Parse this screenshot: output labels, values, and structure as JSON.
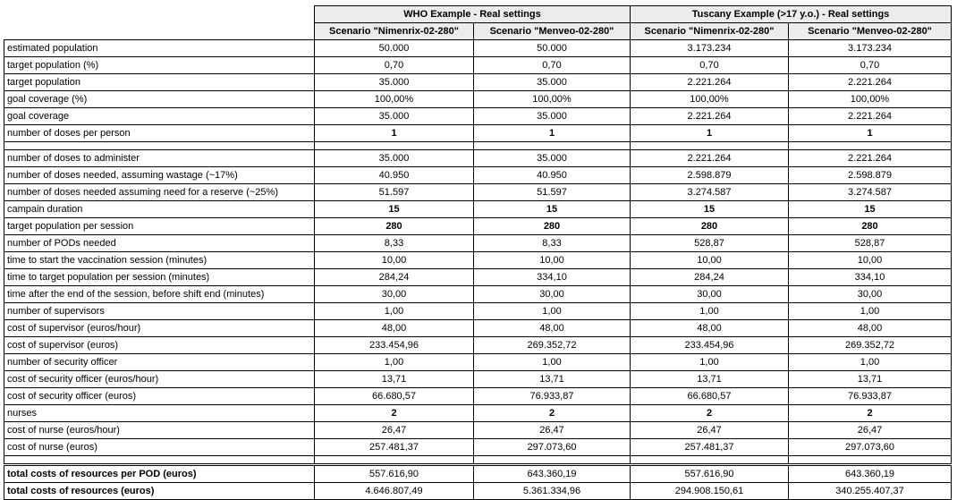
{
  "table": {
    "groups": [
      "WHO Example - Real settings",
      "Tuscany Example (>17 y.o.) - Real settings"
    ],
    "scenarios": [
      "Scenario \"Nimenrix-02-280\"",
      "Scenario \"Menveo-02-280\"",
      "Scenario \"Nimenrix-02-280\"",
      "Scenario \"Menveo-02-280\""
    ],
    "rows": [
      {
        "label": "estimated population",
        "values": [
          "50.000",
          "50.000",
          "3.173.234",
          "3.173.234"
        ]
      },
      {
        "label": "target population (%)",
        "values": [
          "0,70",
          "0,70",
          "0,70",
          "0,70"
        ]
      },
      {
        "label": "target population",
        "values": [
          "35.000",
          "35.000",
          "2.221.264",
          "2.221.264"
        ]
      },
      {
        "label": "goal coverage (%)",
        "values": [
          "100,00%",
          "100,00%",
          "100,00%",
          "100,00%"
        ]
      },
      {
        "label": "goal coverage",
        "values": [
          "35.000",
          "35.000",
          "2.221.264",
          "2.221.264"
        ]
      },
      {
        "label": "number of doses per person",
        "values": [
          "1",
          "1",
          "1",
          "1"
        ]
      },
      {
        "label": "number of doses to administer",
        "values": [
          "35.000",
          "35.000",
          "2.221.264",
          "2.221.264"
        ]
      },
      {
        "label": "number of doses needed, assuming wastage (~17%)",
        "values": [
          "40.950",
          "40.950",
          "2.598.879",
          "2.598.879"
        ]
      },
      {
        "label": "number of doses needed assuming need for a reserve (~25%)",
        "values": [
          "51.597",
          "51.597",
          "3.274.587",
          "3.274.587"
        ]
      },
      {
        "label": "campain duration",
        "values": [
          "15",
          "15",
          "15",
          "15"
        ]
      },
      {
        "label": "target population per session",
        "values": [
          "280",
          "280",
          "280",
          "280"
        ]
      },
      {
        "label": "number of PODs needed",
        "values": [
          "8,33",
          "8,33",
          "528,87",
          "528,87"
        ]
      },
      {
        "label": "time to start the vaccination session (minutes)",
        "values": [
          "10,00",
          "10,00",
          "10,00",
          "10,00"
        ]
      },
      {
        "label": "time to target population per session (minutes)",
        "values": [
          "284,24",
          "334,10",
          "284,24",
          "334,10"
        ]
      },
      {
        "label": "time after the end of the session, before shift end (minutes)",
        "values": [
          "30,00",
          "30,00",
          "30,00",
          "30,00"
        ]
      },
      {
        "label": "number of supervisors",
        "values": [
          "1,00",
          "1,00",
          "1,00",
          "1,00"
        ]
      },
      {
        "label": "cost of supervisor (euros/hour)",
        "values": [
          "48,00",
          "48,00",
          "48,00",
          "48,00"
        ]
      },
      {
        "label": "cost of supervisor (euros)",
        "values": [
          "233.454,96",
          "269.352,72",
          "233.454,96",
          "269.352,72"
        ]
      },
      {
        "label": "number of security officer",
        "values": [
          "1,00",
          "1,00",
          "1,00",
          "1,00"
        ]
      },
      {
        "label": "cost of security officer (euros/hour)",
        "values": [
          "13,71",
          "13,71",
          "13,71",
          "13,71"
        ]
      },
      {
        "label": "cost of security officer (euros)",
        "values": [
          "66.680,57",
          "76.933,87",
          "66.680,57",
          "76.933,87"
        ]
      },
      {
        "label": "nurses",
        "values": [
          "2",
          "2",
          "2",
          "2"
        ]
      },
      {
        "label": "cost of nurse (euros/hour)",
        "values": [
          "26,47",
          "26,47",
          "26,47",
          "26,47"
        ]
      },
      {
        "label": "cost of nurse (euros)",
        "values": [
          "257.481,37",
          "297.073,60",
          "257.481,37",
          "297.073,60"
        ]
      },
      {
        "label": "total costs of resources per POD (euros)",
        "values": [
          "557.616,90",
          "643.360,19",
          "557.616,90",
          "643.360,19"
        ]
      },
      {
        "label": "total costs of resources (euros)",
        "values": [
          "4.646.807,49",
          "5.361.334,96",
          "294.908.150,61",
          "340.255.407,37"
        ]
      }
    ]
  }
}
